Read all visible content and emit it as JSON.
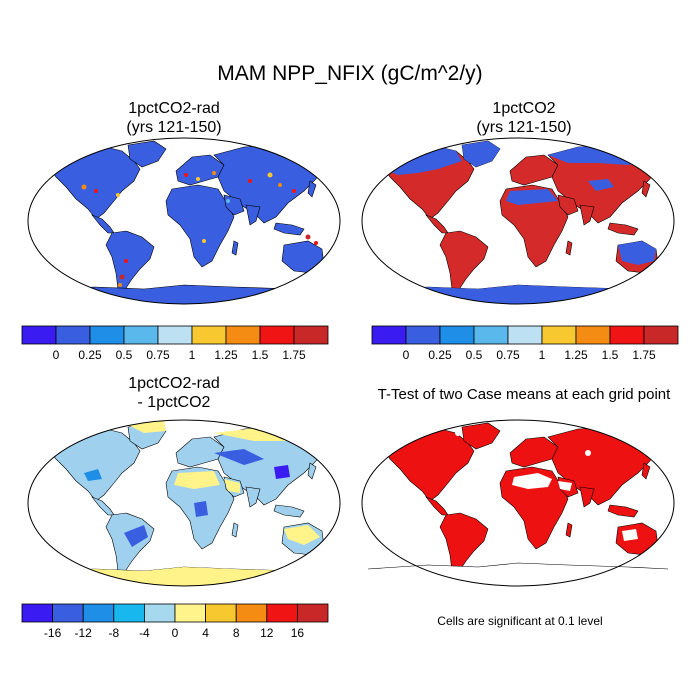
{
  "title": "MAM NPP_NFIX (gC/m^2/y)",
  "panels": {
    "top_left": {
      "title_line1": "1pctCO2-rad",
      "title_line2": "(yrs 121-150)"
    },
    "top_right": {
      "title_line1": "1pctCO2",
      "title_line2": "(yrs 121-150)"
    },
    "bottom_left": {
      "title_line1": "1pctCO2-rad",
      "title_line2": "- 1pctCO2"
    },
    "bottom_right": {
      "title_line1": "T-Test of two Case means at each grid point"
    }
  },
  "colorbar_top": {
    "colors": [
      "#3a1cf2",
      "#3a5ee0",
      "#1e8ee6",
      "#5bb8ec",
      "#bde0f2",
      "#f8c830",
      "#f48c14",
      "#f01414",
      "#c82828"
    ],
    "labels": [
      "0",
      "0.25",
      "0.5",
      "0.75",
      "1",
      "1.25",
      "1.5",
      "1.75"
    ]
  },
  "colorbar_bottom": {
    "colors": [
      "#3a1cf2",
      "#3a5ee0",
      "#1e8ee6",
      "#18b8ee",
      "#a6d8ee",
      "#fff48c",
      "#f8c830",
      "#f48c14",
      "#f01414",
      "#c82828"
    ],
    "labels": [
      "-16",
      "-12",
      "-8",
      "-4",
      "0",
      "4",
      "8",
      "12",
      "16"
    ]
  },
  "significance_note": "Cells are significant at 0.1 level",
  "colors": {
    "low_blue": "#3a5ee0",
    "high_red": "#d42a2a",
    "diff_light_blue": "#9fd0ee",
    "diff_yellow": "#fff38a",
    "significant_red": "#ee1111"
  }
}
